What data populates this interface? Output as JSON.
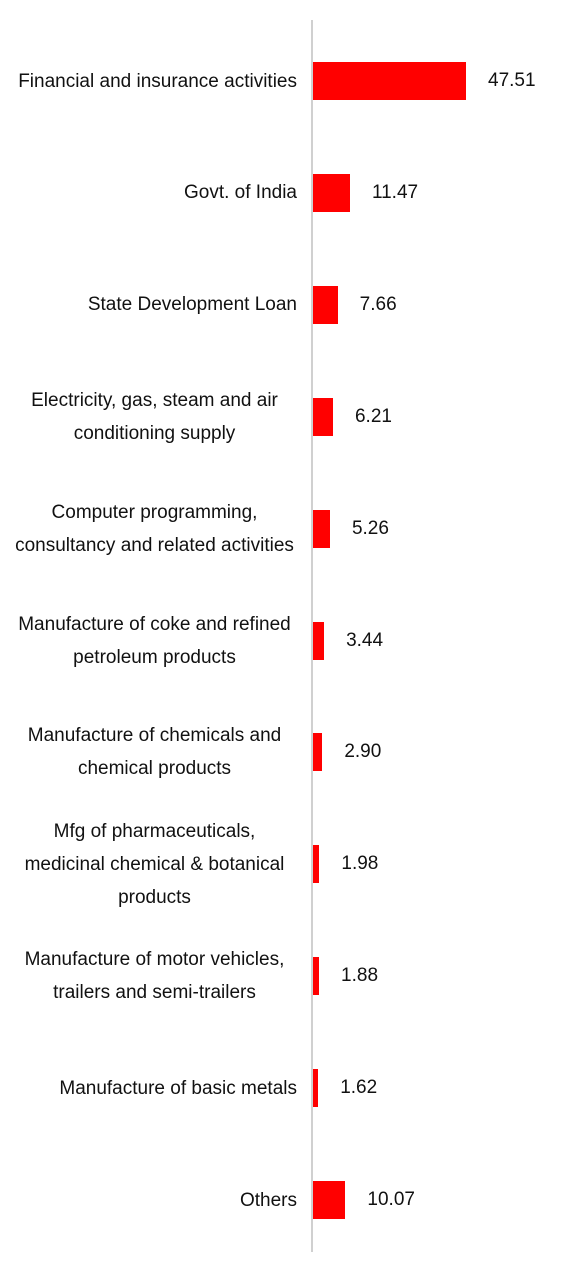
{
  "chart_data": {
    "type": "bar",
    "orientation": "horizontal",
    "color": "#ff0000",
    "categories": [
      "Financial and insurance activities",
      "Govt. of India",
      "State Development Loan",
      "Electricity, gas, steam and air conditioning supply",
      "Computer programming, consultancy and related activities",
      "Manufacture of coke and refined petroleum products",
      "Manufacture of chemicals and chemical products",
      "Mfg of pharmaceuticals, medicinal chemical & botanical products",
      "Manufacture of motor vehicles, trailers and semi-trailers",
      "Manufacture of basic metals",
      "Others"
    ],
    "values": [
      47.51,
      11.47,
      7.66,
      6.21,
      5.26,
      3.44,
      2.9,
      1.98,
      1.88,
      1.62,
      10.07
    ],
    "value_labels": [
      "47.51",
      "11.47",
      "7.66",
      "6.21",
      "5.26",
      "3.44",
      "2.90",
      "1.98",
      "1.88",
      "1.62",
      "10.07"
    ]
  }
}
